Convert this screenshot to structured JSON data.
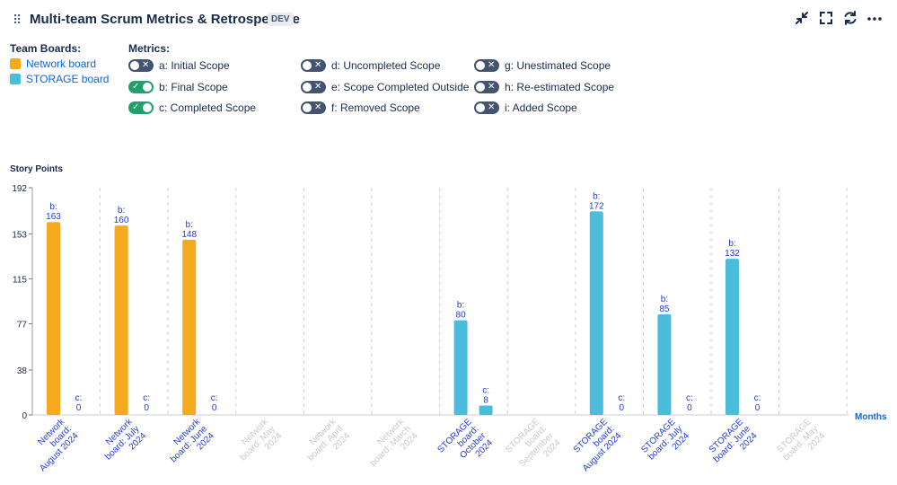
{
  "header": {
    "title": "Multi-team Scrum Metrics & Retrospective",
    "badge": "DEV"
  },
  "legend": {
    "boards_title": "Team Boards:",
    "boards": [
      {
        "label": "Network board",
        "color": "#f5a91c"
      },
      {
        "label": "STORAGE board",
        "color": "#4bbcd9"
      }
    ],
    "metrics_title": "Metrics:",
    "metrics": [
      {
        "label": "a: Initial Scope",
        "on": false
      },
      {
        "label": "b: Final Scope",
        "on": true
      },
      {
        "label": "c: Completed Scope",
        "on": true
      },
      {
        "label": "d: Uncompleted Scope",
        "on": false
      },
      {
        "label": "e: Scope Completed Outside",
        "on": false
      },
      {
        "label": "f: Removed Scope",
        "on": false
      },
      {
        "label": "g: Unestimated Scope",
        "on": false
      },
      {
        "label": "h: Re-estimated Scope",
        "on": false
      },
      {
        "label": "i: Added Scope",
        "on": false
      }
    ]
  },
  "colors": {
    "accent_text": "#0c66e4",
    "bar_label": "#1f3bd9",
    "toggle_on": "#22a06b",
    "toggle_off": "#44546f",
    "dim_label": "#c8c8c8"
  },
  "chart_data": {
    "type": "bar",
    "ylabel": "Story Points",
    "xlabel": "Months",
    "ylim": [
      0,
      192
    ],
    "yticks": [
      0,
      38,
      77,
      115,
      153,
      192
    ],
    "categories": [
      {
        "label": [
          "Network",
          "board:",
          "August 2024"
        ],
        "board": "Network board",
        "active": true
      },
      {
        "label": [
          "Network",
          "board: July",
          "2024"
        ],
        "board": "Network board",
        "active": true
      },
      {
        "label": [
          "Network",
          "board: June",
          "2024"
        ],
        "board": "Network board",
        "active": true
      },
      {
        "label": [
          "Network",
          "board: May",
          "2024"
        ],
        "board": "Network board",
        "active": false
      },
      {
        "label": [
          "Network",
          "board: April",
          "2024"
        ],
        "board": "Network board",
        "active": false
      },
      {
        "label": [
          "Network",
          "board: March",
          "2024"
        ],
        "board": "Network board",
        "active": false
      },
      {
        "label": [
          "STORAGE",
          "board:",
          "October",
          "2024"
        ],
        "board": "STORAGE board",
        "active": true
      },
      {
        "label": [
          "STORAGE",
          "board:",
          "September",
          "2024"
        ],
        "board": "STORAGE board",
        "active": false
      },
      {
        "label": [
          "STORAGE",
          "board:",
          "August 2024"
        ],
        "board": "STORAGE board",
        "active": true
      },
      {
        "label": [
          "STORAGE",
          "board: July",
          "2024"
        ],
        "board": "STORAGE board",
        "active": true
      },
      {
        "label": [
          "STORAGE",
          "board: June",
          "2024"
        ],
        "board": "STORAGE board",
        "active": true
      },
      {
        "label": [
          "STORAGE",
          "board: May",
          "2024"
        ],
        "board": "STORAGE board",
        "active": false
      }
    ],
    "series": [
      {
        "name": "b",
        "values": [
          163,
          160,
          148,
          null,
          null,
          null,
          80,
          null,
          172,
          85,
          132,
          null
        ]
      },
      {
        "name": "c",
        "values": [
          0,
          0,
          0,
          null,
          null,
          null,
          8,
          null,
          0,
          0,
          0,
          null
        ]
      }
    ]
  }
}
